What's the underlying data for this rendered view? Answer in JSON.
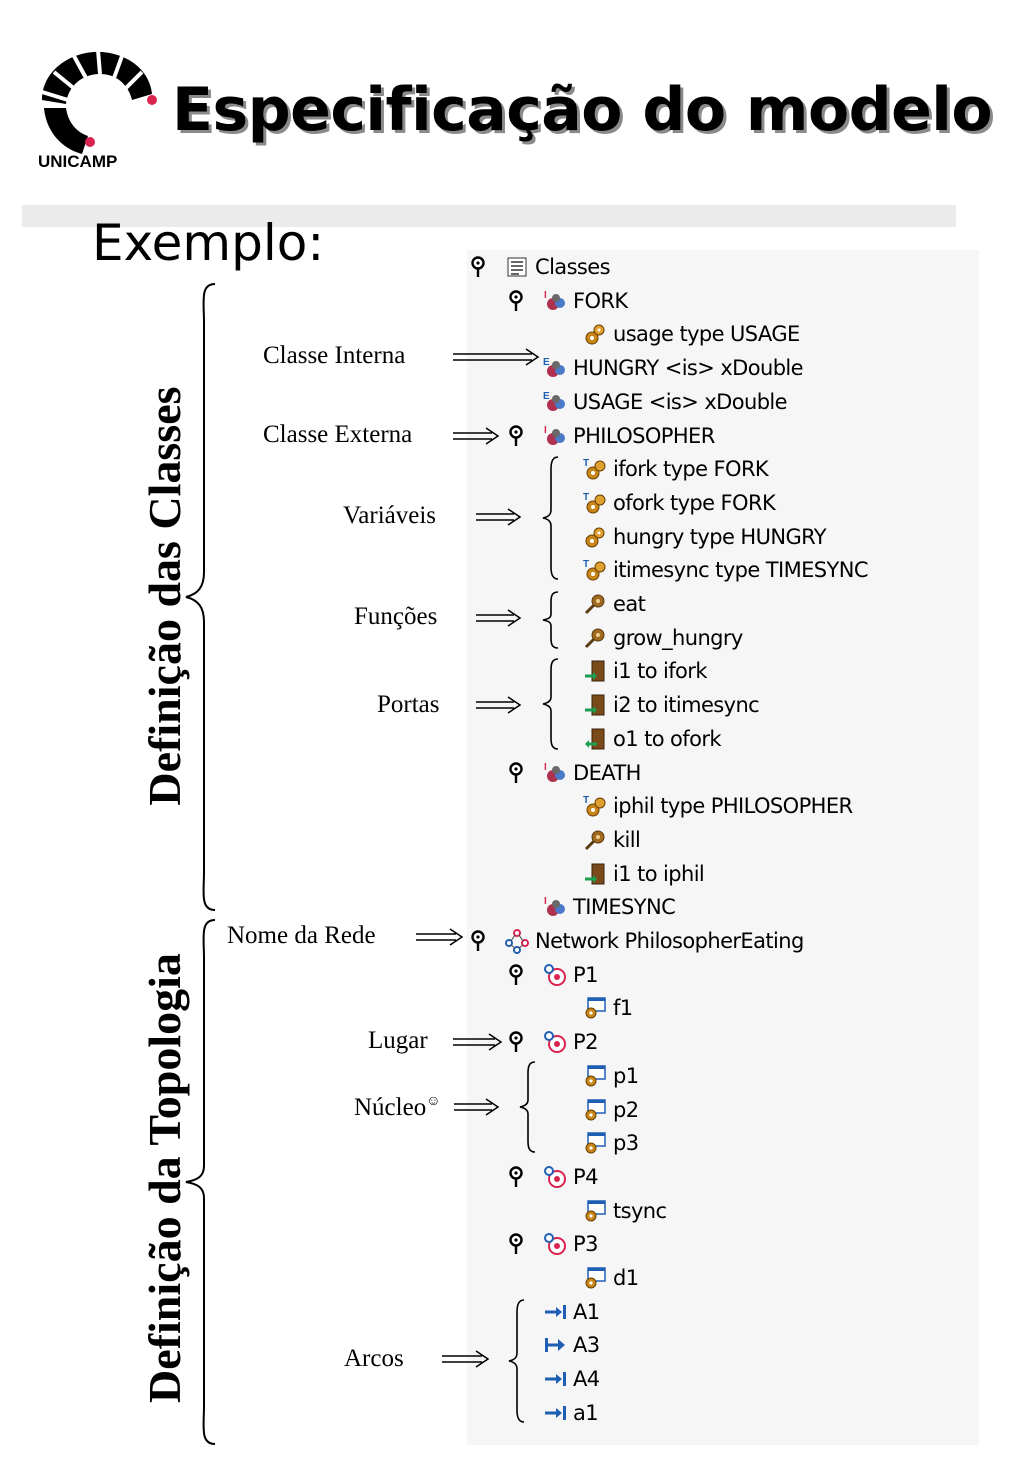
{
  "header": {
    "logo_text": "UNICAMP",
    "title": "Especificação do modelo",
    "subtitle": "Exemplo:"
  },
  "sections": {
    "classes_title": "Definição das Classes",
    "topology_title": "Definição da Topologia"
  },
  "annotations": {
    "classe_interna": "Classe Interna",
    "classe_externa": "Classe Externa",
    "variaveis": "Variáveis",
    "funcoes": "Funções",
    "portas": "Portas",
    "nome_rede": "Nome da Rede",
    "lugar": "Lugar",
    "nucleo": "Núcleo",
    "nucleo_mark": "☺",
    "arcos": "Arcos"
  },
  "tree": {
    "rows": [
      {
        "label": "Classes",
        "icon": "list-icon"
      },
      {
        "label": "FORK",
        "icon": "class-icon"
      },
      {
        "label": "usage type USAGE",
        "icon": "variable-icon"
      },
      {
        "label": "HUNGRY <is> xDouble",
        "icon": "external-class-icon"
      },
      {
        "label": "USAGE <is> xDouble",
        "icon": "external-class-icon"
      },
      {
        "label": "PHILOSOPHER",
        "icon": "class-icon"
      },
      {
        "label": "ifork type FORK",
        "icon": "typed-variable-icon"
      },
      {
        "label": "ofork type FORK",
        "icon": "typed-variable-icon"
      },
      {
        "label": "hungry type HUNGRY",
        "icon": "variable-icon"
      },
      {
        "label": "itimesync type TIMESYNC",
        "icon": "typed-variable-icon"
      },
      {
        "label": "eat",
        "icon": "function-icon"
      },
      {
        "label": "grow_hungry",
        "icon": "function-icon"
      },
      {
        "label": "i1 to ifork",
        "icon": "input-port-icon"
      },
      {
        "label": "i2 to itimesync",
        "icon": "input-port-icon"
      },
      {
        "label": "o1 to ofork",
        "icon": "output-port-icon"
      },
      {
        "label": "DEATH",
        "icon": "class-icon"
      },
      {
        "label": "iphil type PHILOSOPHER",
        "icon": "typed-variable-icon"
      },
      {
        "label": "kill",
        "icon": "function-icon"
      },
      {
        "label": "i1 to iphil",
        "icon": "input-port-icon"
      },
      {
        "label": "TIMESYNC",
        "icon": "class-icon"
      },
      {
        "label": "Network PhilosopherEating",
        "icon": "network-icon"
      },
      {
        "label": "P1",
        "icon": "place-icon"
      },
      {
        "label": "f1",
        "icon": "kernel-icon"
      },
      {
        "label": "P2",
        "icon": "place-icon"
      },
      {
        "label": "p1",
        "icon": "kernel-icon"
      },
      {
        "label": "p2",
        "icon": "kernel-icon"
      },
      {
        "label": "p3",
        "icon": "kernel-icon"
      },
      {
        "label": "P4",
        "icon": "place-icon"
      },
      {
        "label": "tsync",
        "icon": "kernel-icon"
      },
      {
        "label": "P3",
        "icon": "place-icon"
      },
      {
        "label": "d1",
        "icon": "kernel-icon"
      },
      {
        "label": "A1",
        "icon": "arc-icon"
      },
      {
        "label": "A3",
        "icon": "arc-alt-icon"
      },
      {
        "label": "A4",
        "icon": "arc-icon"
      },
      {
        "label": "a1",
        "icon": "arc-icon"
      }
    ]
  },
  "colors": {
    "panel_bg": "#f6f6f6",
    "divider": "#ebebeb",
    "arc_blue": "#1f5fb3",
    "place_red": "#d8244f",
    "variable_orange": "#c8861a"
  }
}
